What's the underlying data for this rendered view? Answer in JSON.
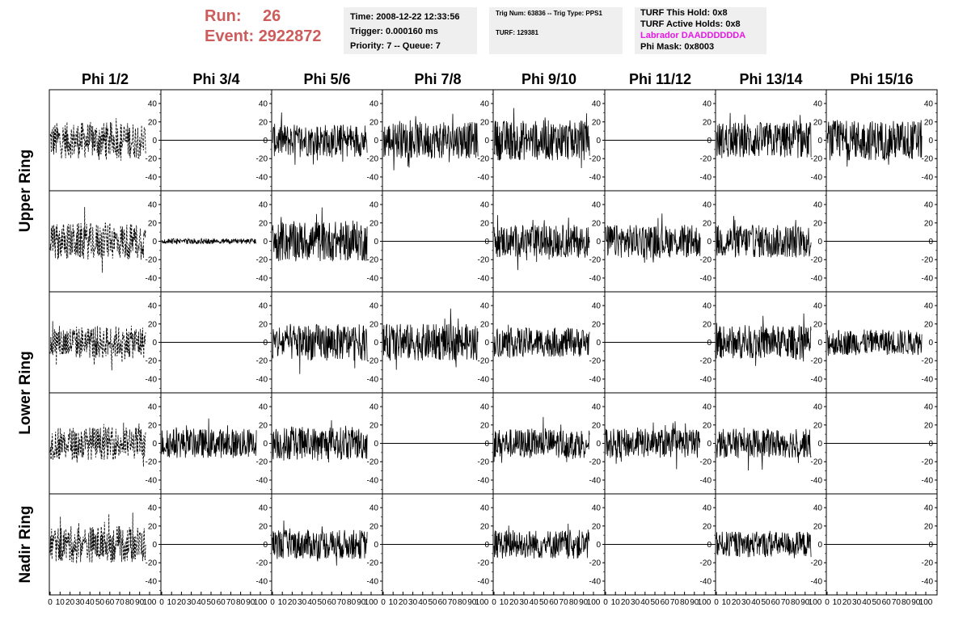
{
  "header": {
    "run_label": "Run:",
    "run_value": "26",
    "event_label": "Event:",
    "event_value": "2922872",
    "time": "Time: 2008-12-22 12:33:56",
    "trigger": "Trigger: 0.000160 ms",
    "priority": "Priority: 7 -- Queue: 7",
    "trig_num": "Trig Num: 63836 -- Trig Type: PPS1",
    "turf": "TURF: 129381",
    "turf_this_hold": "TURF This Hold: 0x8",
    "turf_active_holds": "TURF Active Holds: 0x8",
    "labrador": "Labrador DAADDDDDDA",
    "phi_mask": "Phi Mask: 0x8003"
  },
  "colors": {
    "run_text": "#cd5c5c",
    "labrador_text": "#e817e8",
    "info_box_bg": "#efefef",
    "trace": "#000000"
  },
  "chart_data": {
    "type": "line",
    "columns": [
      "Phi 1/2",
      "Phi 3/4",
      "Phi 5/6",
      "Phi 7/8",
      "Phi 9/10",
      "Phi 11/12",
      "Phi 13/14",
      "Phi 15/16"
    ],
    "ring_labels": [
      {
        "name": "Upper Ring",
        "rows": [
          0,
          1
        ]
      },
      {
        "name": "Lower Ring",
        "rows": [
          2,
          3
        ]
      },
      {
        "name": "Nadir Ring",
        "rows": [
          4,
          4
        ]
      }
    ],
    "xlim": [
      0,
      100
    ],
    "x_ticks": [
      0,
      10,
      20,
      30,
      40,
      50,
      60,
      70,
      80,
      90,
      100
    ],
    "x_tick_labels": [
      "0",
      "10",
      "20",
      "30",
      "40",
      "50",
      "60",
      "70",
      "80",
      "90",
      "100"
    ],
    "ylim": [
      -55,
      55
    ],
    "y_ticks": [
      -40,
      -20,
      0,
      20,
      40
    ],
    "y_tick_labels": [
      "-40",
      "-20",
      "0",
      "20",
      "40"
    ],
    "x_extent": [
      0,
      96
    ],
    "panels": [
      [
        "dashed",
        "flat",
        "noise",
        "noise",
        "noise",
        "flat",
        "noise",
        "noise"
      ],
      [
        "dashed",
        "small",
        "noise",
        "flat",
        "noise",
        "noise",
        "noise",
        "flat"
      ],
      [
        "dashed",
        "flat",
        "noise",
        "noise",
        "noise",
        "flat",
        "noise",
        "noise"
      ],
      [
        "dashed",
        "noise",
        "noise",
        "flat",
        "noise",
        "noise",
        "noise",
        "flat"
      ],
      [
        "dashed",
        "flat",
        "noise",
        "flat",
        "noise",
        "flat",
        "noise",
        "flat"
      ]
    ],
    "amplitude": [
      [
        20,
        0,
        18,
        20,
        22,
        0,
        20,
        22
      ],
      [
        20,
        3,
        22,
        0,
        18,
        18,
        18,
        0
      ],
      [
        18,
        0,
        20,
        20,
        16,
        0,
        18,
        14
      ],
      [
        18,
        16,
        18,
        0,
        16,
        16,
        16,
        0
      ],
      [
        20,
        0,
        16,
        0,
        16,
        0,
        14,
        0
      ]
    ]
  }
}
